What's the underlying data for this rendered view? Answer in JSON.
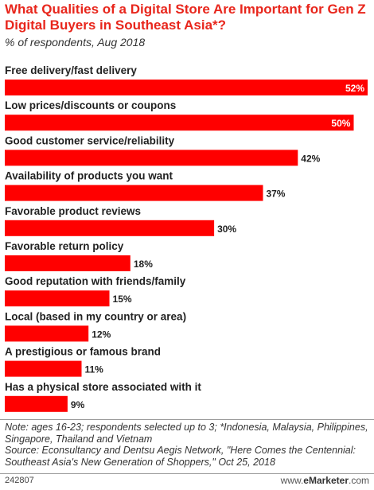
{
  "header": {
    "title": "What Qualities of a Digital Store Are Important for Gen Z Digital Buyers in Southeast Asia*?",
    "subtitle": "% of respondents, Aug 2018"
  },
  "chart_data": {
    "type": "bar",
    "orientation": "horizontal",
    "categories": [
      "Free delivery/fast delivery",
      "Low prices/discounts or coupons",
      "Good customer service/reliability",
      "Availability of products you want",
      "Favorable product reviews",
      "Favorable return policy",
      "Good reputation with friends/family",
      "Local (based in my country or area)",
      "A prestigious or famous brand",
      "Has a physical store associated with it"
    ],
    "values": [
      52,
      50,
      42,
      37,
      30,
      18,
      15,
      12,
      11,
      9
    ],
    "value_labels": [
      "52%",
      "50%",
      "42%",
      "37%",
      "30%",
      "18%",
      "15%",
      "12%",
      "11%",
      "9%"
    ],
    "bar_color": "#ff0000",
    "xlim": [
      0,
      52
    ],
    "grid": false,
    "legend": "none"
  },
  "footer": {
    "note": "Note: ages 16-23; respondents selected up to 3; *Indonesia, Malaysia, Philippines, Singapore, Thailand and Vietnam",
    "source": "Source: Econsultancy and Dentsu Aegis Network, \"Here Comes the Centennial: Southeast Asia's New Generation of Shoppers,\" Oct 25, 2018",
    "id": "242807",
    "brand_prefix": "www.",
    "brand_name": "eMarketer",
    "brand_suffix": ".com"
  }
}
